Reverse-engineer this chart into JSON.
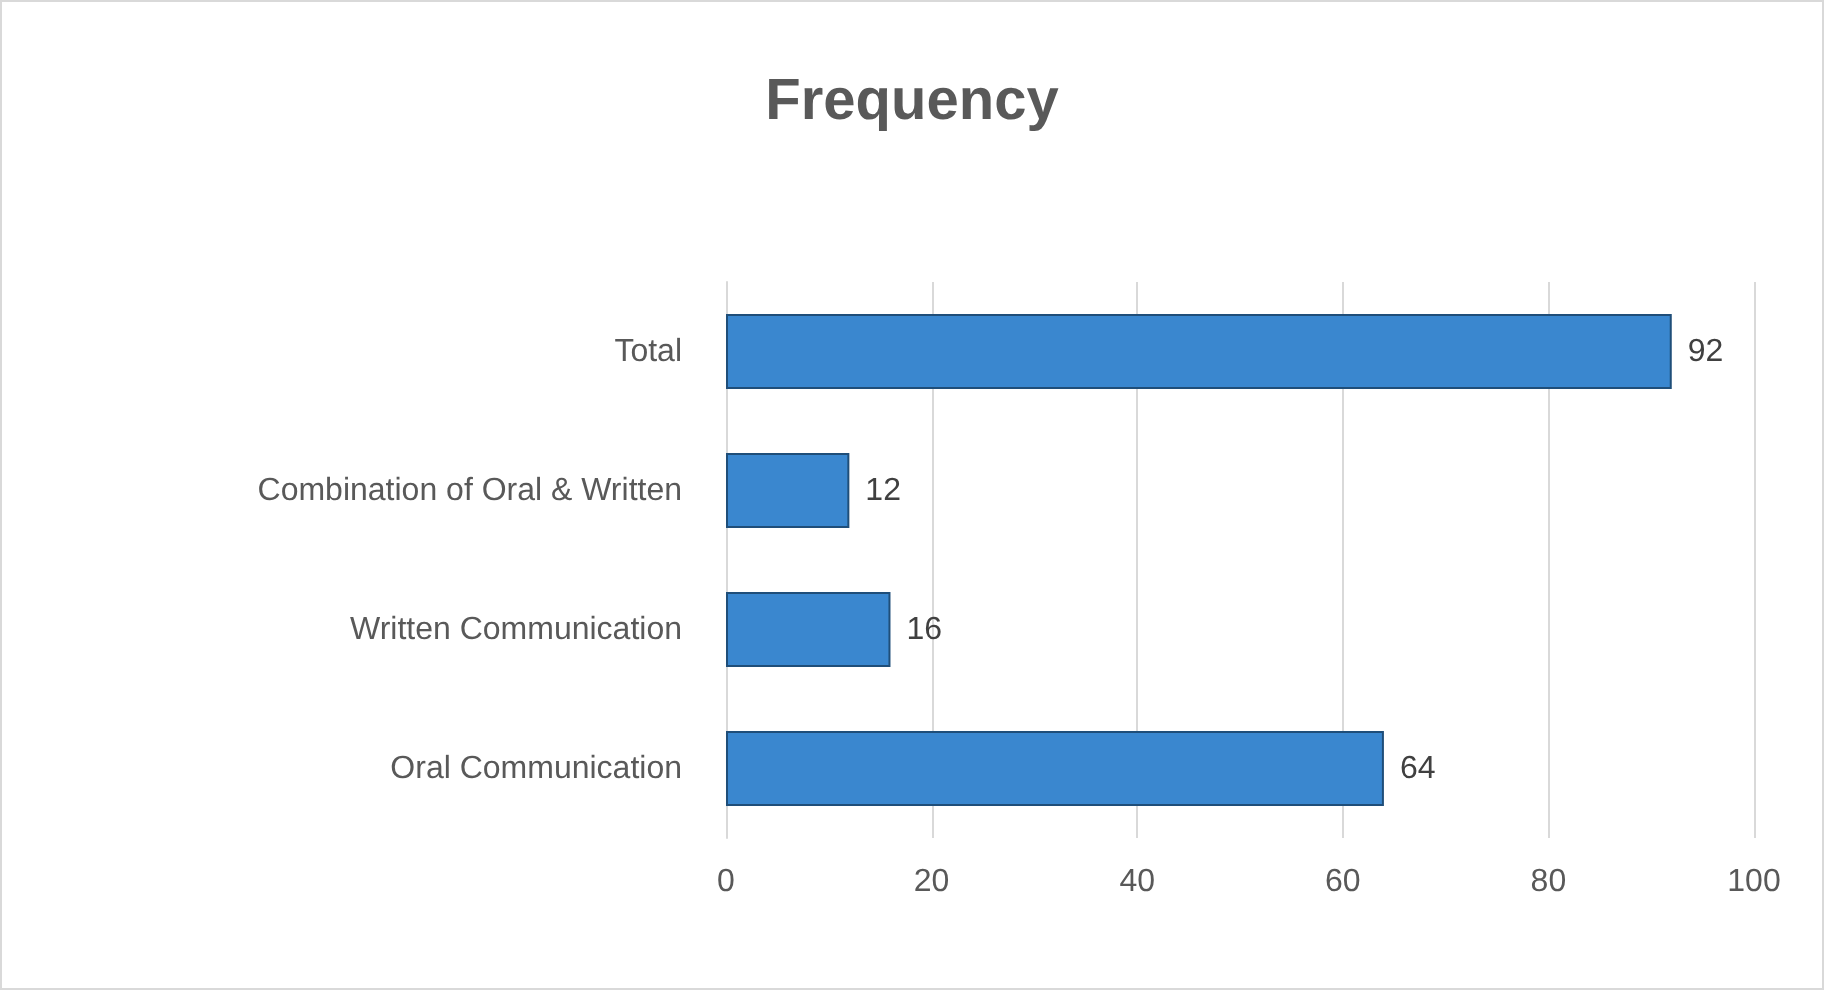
{
  "chart_data": {
    "type": "bar",
    "orientation": "horizontal",
    "title": "Frequency",
    "categories": [
      "Total",
      "Combination of Oral & Written",
      "Written Communication",
      "Oral Communication"
    ],
    "values": [
      92,
      12,
      16,
      64
    ],
    "color": "#3a87cf",
    "xlim": [
      0,
      100
    ],
    "xticks": [
      0,
      20,
      40,
      60,
      80,
      100
    ],
    "grid": "x",
    "data_labels": true
  }
}
